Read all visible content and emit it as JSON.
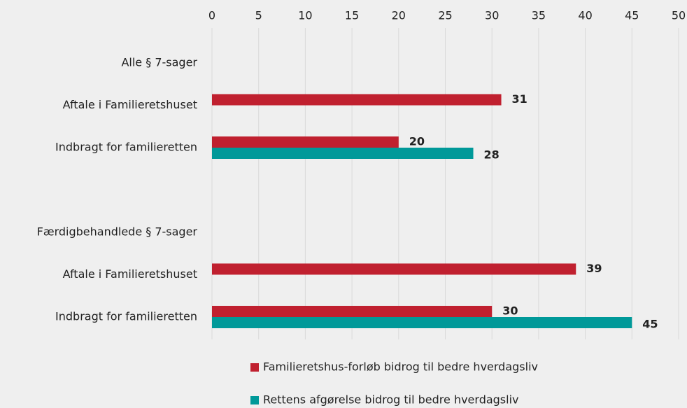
{
  "chart_data": {
    "type": "bar",
    "orientation": "horizontal",
    "categories": [
      "Alle § 7-sager",
      "Aftale i Familieretshuset",
      "Indbragt for familieretten",
      null,
      "Færdigbehandlede § 7-sager",
      "Aftale i Familieretshuset",
      "Indbragt for familieretten"
    ],
    "series": [
      {
        "name": "Familieretshus-forløb bidrog til bedre hverdagsliv",
        "color": "#c0202f",
        "values": [
          null,
          31,
          20,
          null,
          null,
          39,
          30
        ]
      },
      {
        "name": "Rettens afgørelse bidrog til bedre hverdagsliv",
        "color": "#009999",
        "values": [
          null,
          null,
          28,
          null,
          null,
          null,
          45
        ]
      }
    ],
    "xlim": [
      0,
      50
    ],
    "xticks": [
      0,
      5,
      10,
      15,
      20,
      25,
      30,
      35,
      40,
      45,
      50
    ],
    "grid": true,
    "legend": "bottom"
  }
}
